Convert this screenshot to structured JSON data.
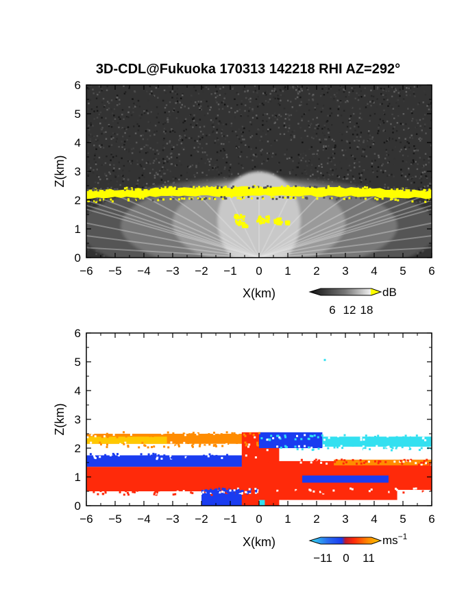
{
  "title": "3D-CDL@Fukuoka 170313 142218 RHI AZ=292°",
  "chart_data": [
    {
      "type": "heatmap",
      "name": "reflectivity",
      "xlabel": "X(km)",
      "ylabel": "Z(km)",
      "xlim": [
        -6,
        6
      ],
      "ylim": [
        0,
        6
      ],
      "xticks": [
        "−6",
        "−5",
        "−4",
        "−3",
        "−2",
        "−1",
        "0",
        "1",
        "2",
        "3",
        "4",
        "5",
        "6"
      ],
      "yticks": [
        "0",
        "1",
        "2",
        "3",
        "4",
        "5",
        "6"
      ],
      "colorbar": {
        "unit": "dB",
        "ticks": [
          "6",
          "12",
          "18"
        ],
        "range": [
          0,
          24
        ],
        "colormap": "grayscale, yellow above 18 dB"
      },
      "features": {
        "strong_layer_top_km": 2.45,
        "strong_layer_bottom_km": 2.15,
        "strong_layer_color": "#ffff00",
        "noise_color": "#333333"
      }
    },
    {
      "type": "heatmap",
      "name": "doppler-velocity",
      "xlabel": "X(km)",
      "ylabel": "Z(km)",
      "xlim": [
        -6,
        6
      ],
      "ylim": [
        0,
        6
      ],
      "xticks": [
        "−6",
        "−5",
        "−4",
        "−3",
        "−2",
        "−1",
        "0",
        "1",
        "2",
        "3",
        "4",
        "5",
        "6"
      ],
      "yticks": [
        "0",
        "1",
        "2",
        "3",
        "4",
        "5",
        "6"
      ],
      "colorbar": {
        "unit": "ms",
        "unit_exp": "−1",
        "ticks": [
          "−11",
          "0",
          "11"
        ],
        "range": [
          -15,
          15
        ],
        "colormap": "cyan-blue-red-orange-yellow"
      },
      "colors": {
        "cyan": "#33e0f0",
        "blue": "#1a3cf0",
        "red": "#ff2a0a",
        "orange": "#ff8c00",
        "yellow": "#ffc800"
      }
    }
  ]
}
